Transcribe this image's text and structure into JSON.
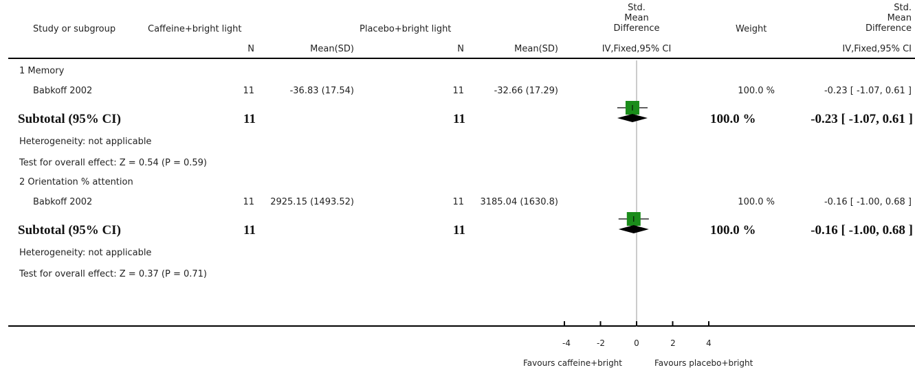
{
  "header": {
    "study_col": "Study or subgroup",
    "exp_group": "Caffeine+bright light",
    "ctrl_group": "Placebo+bright light",
    "smd_mid": "Std. Mean Difference",
    "smd_mid_l1": "Std.",
    "smd_mid_l2": "Mean",
    "smd_mid_l3": "Difference",
    "weight_col": "Weight",
    "smd_right_l1": "Std.",
    "smd_right_l2": "Mean",
    "smd_right_l3": "Difference",
    "n_label": "N",
    "mean_sd_label": "Mean(SD)",
    "method_mid": "IV,Fixed,95% CI",
    "method_right": "IV,Fixed,95% CI"
  },
  "subgroups": [
    {
      "title": "1 Memory",
      "study": {
        "name": "Babkoff 2002",
        "exp_n": "11",
        "exp_mean_sd": "-36.83 (17.54)",
        "ctrl_n": "11",
        "ctrl_mean_sd": "-32.66 (17.29)",
        "weight": "100.0 %",
        "ci_text": "-0.23 [ -1.07, 0.61 ]"
      },
      "subtotal": {
        "label": "Subtotal (95% CI)",
        "exp_n": "11",
        "ctrl_n": "11",
        "weight": "100.0 %",
        "ci_text": "-0.23 [ -1.07, 0.61 ]"
      },
      "heterogeneity": "Heterogeneity: not applicable",
      "overall_effect": "Test for overall effect: Z = 0.54 (P = 0.59)"
    },
    {
      "title": "2 Orientation % attention",
      "study": {
        "name": "Babkoff 2002",
        "exp_n": "11",
        "exp_mean_sd": "2925.15 (1493.52)",
        "ctrl_n": "11",
        "ctrl_mean_sd": "3185.04 (1630.8)",
        "weight": "100.0 %",
        "ci_text": "-0.16 [ -1.00, 0.68 ]"
      },
      "subtotal": {
        "label": "Subtotal (95% CI)",
        "exp_n": "11",
        "ctrl_n": "11",
        "weight": "100.0 %",
        "ci_text": "-0.16 [ -1.00, 0.68 ]"
      },
      "heterogeneity": "Heterogeneity: not applicable",
      "overall_effect": "Test for overall effect: Z = 0.37 (P = 0.71)"
    }
  ],
  "axis": {
    "favours_left": "Favours caffeine+bright",
    "favours_right": "Favours placebo+bright"
  },
  "chart_data": {
    "type": "forest",
    "xlim": [
      -4,
      4
    ],
    "ticks": [
      -4,
      -2,
      0,
      2,
      4
    ],
    "tick_labels": [
      "-4",
      "-2",
      "0",
      "2",
      "4"
    ],
    "studies": [
      {
        "subgroup": "1 Memory",
        "name": "Babkoff 2002",
        "smd": -0.23,
        "ci": [
          -1.07,
          0.61
        ],
        "weight_pct": 100.0
      },
      {
        "subgroup": "2 Orientation % attention",
        "name": "Babkoff 2002",
        "smd": -0.16,
        "ci": [
          -1.0,
          0.68
        ],
        "weight_pct": 100.0
      }
    ],
    "subtotals": [
      {
        "subgroup": "1 Memory",
        "smd": -0.23,
        "ci": [
          -1.07,
          0.61
        ]
      },
      {
        "subgroup": "2 Orientation % attention",
        "smd": -0.16,
        "ci": [
          -1.0,
          0.68
        ]
      }
    ],
    "colors": {
      "square": "#1a8c1a",
      "diamond": "#000000",
      "line": "#000000",
      "zero_line": "#999999"
    }
  }
}
